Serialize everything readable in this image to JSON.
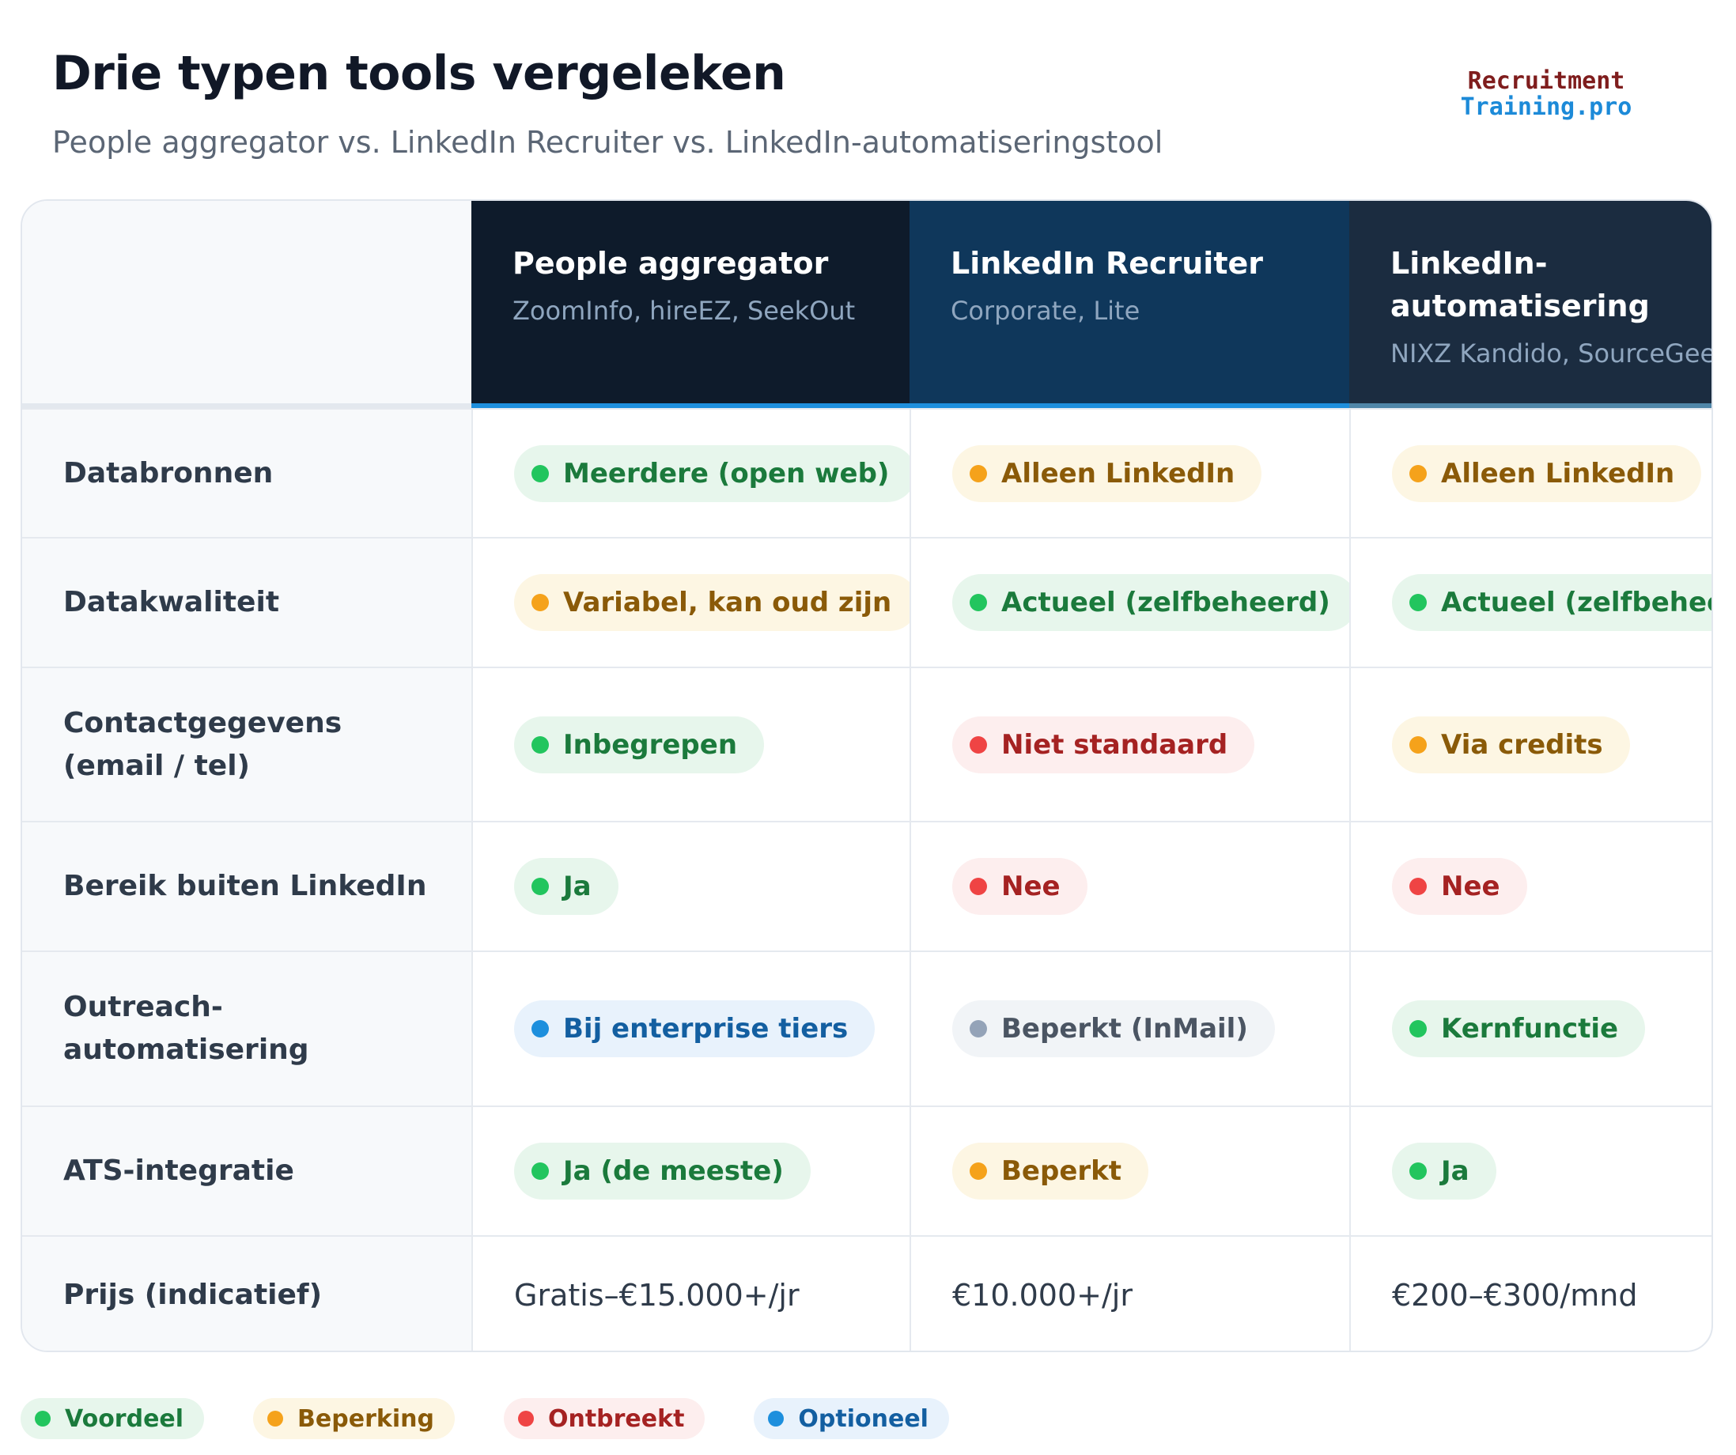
{
  "header": {
    "title": "Drie typen tools vergeleken",
    "subtitle": "People aggregator vs. LinkedIn Recruiter vs. LinkedIn-automatiseringstool"
  },
  "logo": {
    "line1": "Recruitment",
    "line2": "Training.pro"
  },
  "columns": [
    {
      "title": "People aggregator",
      "subtitle": "ZoomInfo, hireEZ, SeekOut"
    },
    {
      "title": "LinkedIn Recruiter",
      "subtitle": "Corporate, Lite"
    },
    {
      "title": "LinkedIn-automatisering",
      "subtitle": "NIXZ Kandido, SourceGeek"
    }
  ],
  "rows": [
    {
      "label": "Databronnen",
      "cells": [
        {
          "text": "Meerdere (open web)",
          "status": "green"
        },
        {
          "text": "Alleen LinkedIn",
          "status": "orange"
        },
        {
          "text": "Alleen LinkedIn",
          "status": "orange"
        }
      ]
    },
    {
      "label": "Datakwaliteit",
      "cells": [
        {
          "text": "Variabel, kan oud zijn",
          "status": "orange"
        },
        {
          "text": "Actueel (zelfbeheerd)",
          "status": "green"
        },
        {
          "text": "Actueel (zelfbeheerd)",
          "status": "green"
        }
      ]
    },
    {
      "label": "Contactgegevens (email / tel)",
      "cells": [
        {
          "text": "Inbegrepen",
          "status": "green"
        },
        {
          "text": "Niet standaard",
          "status": "red"
        },
        {
          "text": "Via credits",
          "status": "orange"
        }
      ]
    },
    {
      "label": "Bereik buiten LinkedIn",
      "cells": [
        {
          "text": "Ja",
          "status": "green"
        },
        {
          "text": "Nee",
          "status": "red"
        },
        {
          "text": "Nee",
          "status": "red"
        }
      ]
    },
    {
      "label": "Outreach-automatisering",
      "cells": [
        {
          "text": "Bij enterprise tiers",
          "status": "blue"
        },
        {
          "text": "Beperkt (InMail)",
          "status": "gray"
        },
        {
          "text": "Kernfunctie",
          "status": "green"
        }
      ]
    },
    {
      "label": "ATS-integratie",
      "cells": [
        {
          "text": "Ja (de meeste)",
          "status": "green"
        },
        {
          "text": "Beperkt",
          "status": "orange"
        },
        {
          "text": "Ja",
          "status": "green"
        }
      ]
    },
    {
      "label": "Prijs (indicatief)",
      "cells": [
        {
          "text": "Gratis–€15.000+/jr",
          "status": "plain"
        },
        {
          "text": "€10.000+/jr",
          "status": "plain"
        },
        {
          "text": "€200–€300/mnd",
          "status": "plain"
        }
      ]
    }
  ],
  "legend": [
    {
      "label": "Voordeel",
      "status": "green"
    },
    {
      "label": "Beperking",
      "status": "orange"
    },
    {
      "label": "Ontbreekt",
      "status": "red"
    },
    {
      "label": "Optioneel",
      "status": "blue"
    }
  ],
  "colors": {
    "green": "#22c55e",
    "orange": "#f5a21b",
    "red": "#ef4444",
    "blue": "#1d8fdd",
    "gray": "#94a3b8",
    "header_col1": "#0e1b2b",
    "header_col2": "#0f375b",
    "header_col3": "#1b2c40"
  }
}
